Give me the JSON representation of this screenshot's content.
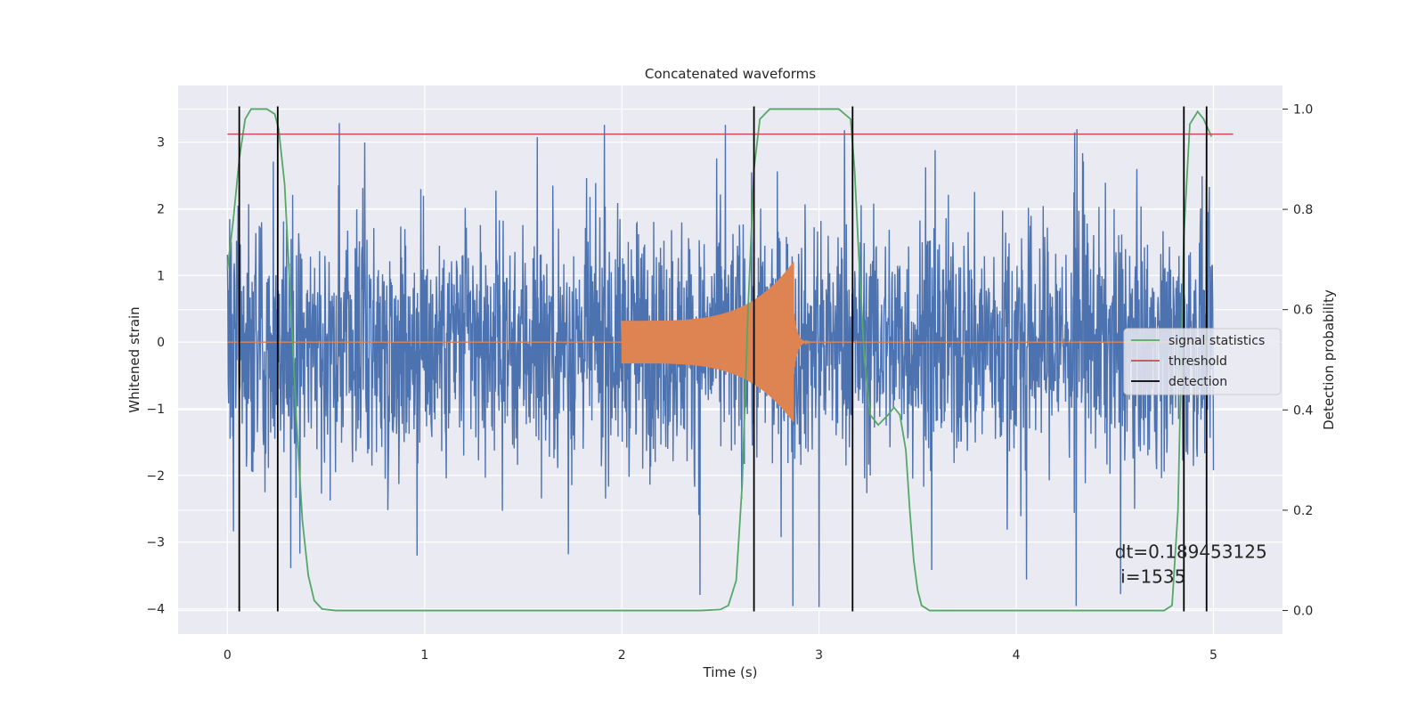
{
  "chart_data": {
    "type": "line",
    "title": "Concatenated waveforms",
    "xlabel": "Time (s)",
    "ylabel": "Whitened strain",
    "ylabel_right": "Detection probability",
    "xlim": [
      -0.25,
      5.35
    ],
    "ylim": [
      -4.38,
      3.85
    ],
    "ylim_right": [
      -0.047,
      1.047
    ],
    "x_ticks": [
      0,
      1,
      2,
      3,
      4,
      5
    ],
    "x_tick_labels": [
      "0",
      "1",
      "2",
      "3",
      "4",
      "5"
    ],
    "y_ticks": [
      -4,
      -3,
      -2,
      -1,
      0,
      1,
      2,
      3
    ],
    "y_tick_labels": [
      "−4",
      "−3",
      "−2",
      "−1",
      "0",
      "1",
      "2",
      "3"
    ],
    "y_right_ticks": [
      0.0,
      0.2,
      0.4,
      0.6,
      0.8,
      1.0
    ],
    "y_right_tick_labels": [
      "0.0",
      "0.2",
      "0.4",
      "0.6",
      "0.8",
      "1.0"
    ],
    "grid": true,
    "legend_placement": "center-right",
    "legend": [
      {
        "label": "signal statistics",
        "color": "#55a868"
      },
      {
        "label": "threshold",
        "color": "#c44e52"
      },
      {
        "label": "detection",
        "color": "#000000"
      }
    ],
    "noise": {
      "color": "#4c72b0",
      "x_range": [
        0,
        5
      ],
      "typical_amplitude": 1.3,
      "peak_range": [
        -4.0,
        3.4
      ]
    },
    "chirp": {
      "color": "#dd8452",
      "start": 2.0,
      "merger": 2.87,
      "start_amplitude": 0.32,
      "peak_amplitude": 1.2
    },
    "threshold": {
      "value": 0.95,
      "x_range": [
        0,
        5.1
      ],
      "color": "#c44e52"
    },
    "signal_statistics": {
      "color": "#55a868",
      "points": [
        [
          0.0,
          0.68
        ],
        [
          0.03,
          0.78
        ],
        [
          0.06,
          0.9
        ],
        [
          0.09,
          0.98
        ],
        [
          0.12,
          1.0
        ],
        [
          0.2,
          1.0
        ],
        [
          0.24,
          0.99
        ],
        [
          0.26,
          0.96
        ],
        [
          0.29,
          0.85
        ],
        [
          0.32,
          0.62
        ],
        [
          0.35,
          0.38
        ],
        [
          0.38,
          0.18
        ],
        [
          0.41,
          0.07
        ],
        [
          0.44,
          0.02
        ],
        [
          0.48,
          0.003
        ],
        [
          0.55,
          0.0
        ],
        [
          2.4,
          0.0
        ],
        [
          2.5,
          0.002
        ],
        [
          2.54,
          0.01
        ],
        [
          2.58,
          0.06
        ],
        [
          2.61,
          0.25
        ],
        [
          2.64,
          0.6
        ],
        [
          2.67,
          0.88
        ],
        [
          2.7,
          0.98
        ],
        [
          2.75,
          1.0
        ],
        [
          3.1,
          1.0
        ],
        [
          3.16,
          0.98
        ],
        [
          3.18,
          0.88
        ],
        [
          3.2,
          0.72
        ],
        [
          3.23,
          0.5
        ],
        [
          3.26,
          0.39
        ],
        [
          3.3,
          0.37
        ],
        [
          3.35,
          0.39
        ],
        [
          3.38,
          0.405
        ],
        [
          3.41,
          0.39
        ],
        [
          3.44,
          0.32
        ],
        [
          3.46,
          0.2
        ],
        [
          3.48,
          0.1
        ],
        [
          3.5,
          0.04
        ],
        [
          3.52,
          0.01
        ],
        [
          3.56,
          0.0
        ],
        [
          4.75,
          0.0
        ],
        [
          4.79,
          0.01
        ],
        [
          4.82,
          0.2
        ],
        [
          4.85,
          0.75
        ],
        [
          4.88,
          0.97
        ],
        [
          4.92,
          0.995
        ],
        [
          4.95,
          0.98
        ],
        [
          4.99,
          0.945
        ]
      ]
    },
    "detections": [
      0.06,
      0.255,
      2.67,
      3.17,
      4.85,
      4.965
    ],
    "annotation": {
      "line1": "dt=0.189453125",
      "line2": " i=1535",
      "x": 4.5,
      "y_prob": 0.105
    }
  }
}
